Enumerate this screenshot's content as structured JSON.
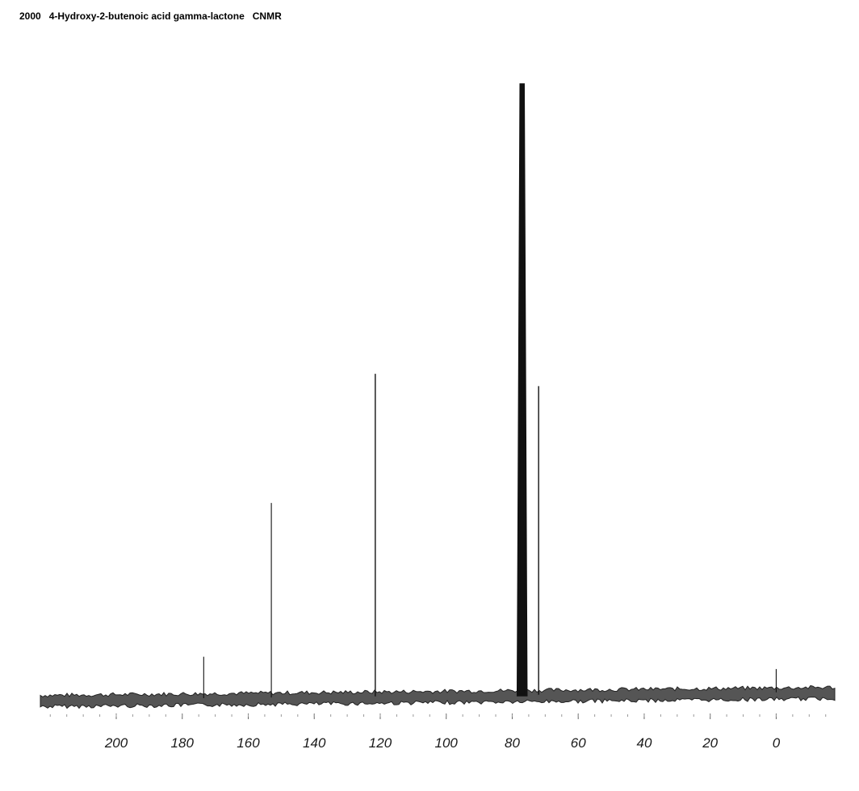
{
  "title": "2000   4-Hydroxy-2-butenoic acid gamma-lactone   CNMR",
  "chart_data": {
    "type": "line",
    "title": "2000   4-Hydroxy-2-butenoic acid gamma-lactone   CNMR",
    "xlabel": "",
    "ylabel": "",
    "x_reversed": true,
    "xlim": [
      223,
      -18
    ],
    "ylim": [
      0,
      100
    ],
    "x_ticks": [
      200,
      180,
      160,
      140,
      120,
      100,
      80,
      60,
      40,
      20,
      0
    ],
    "x_tick_labels": [
      "200",
      "180",
      "160",
      "140",
      "120",
      "100",
      "80",
      "60",
      "40",
      "20",
      "0"
    ],
    "grid": false,
    "line_color": "#111111",
    "baseline_color": "#555555",
    "peaks": [
      {
        "ppm": 173.5,
        "intensity": 7
      },
      {
        "ppm": 153.0,
        "intensity": 32
      },
      {
        "ppm": 121.5,
        "intensity": 53
      },
      {
        "ppm": 77.0,
        "intensity": 100
      },
      {
        "ppm": 72.0,
        "intensity": 51
      },
      {
        "ppm": 0.0,
        "intensity": 5
      }
    ]
  }
}
